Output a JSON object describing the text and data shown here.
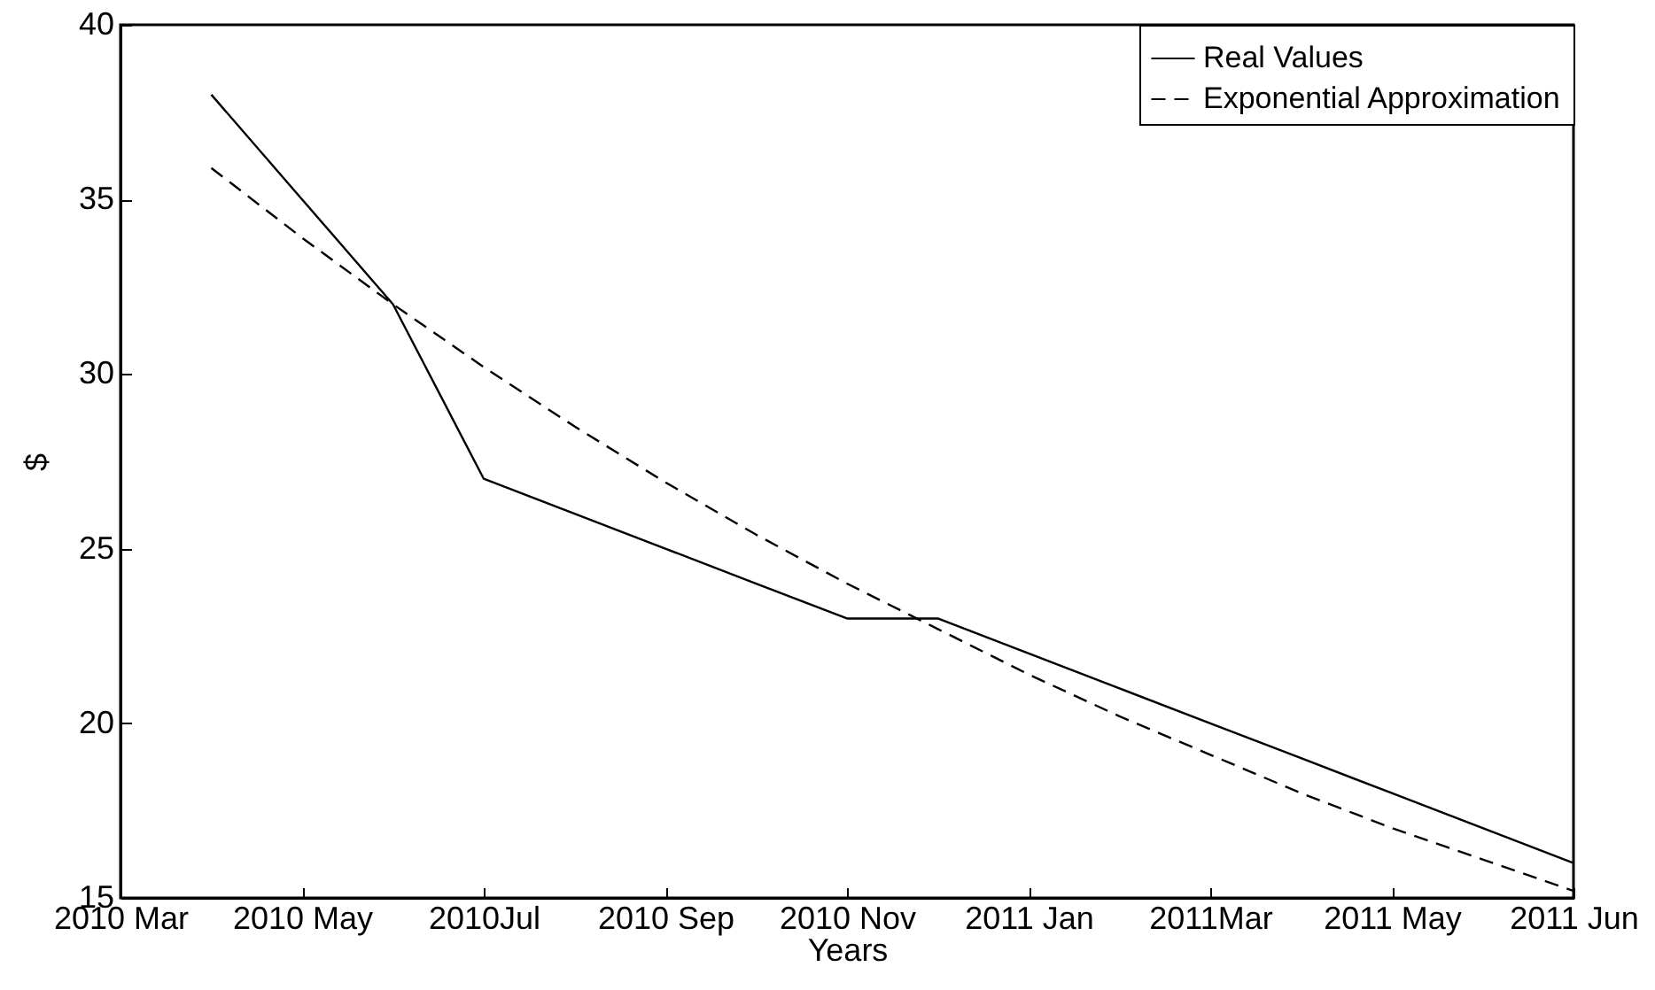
{
  "chart_data": {
    "type": "line",
    "xlabel": "Years",
    "ylabel": "$",
    "categories": [
      "2010 Mar",
      null,
      "2010 May",
      null,
      "2010Jul",
      null,
      "2010 Sep",
      null,
      "2010 Nov",
      null,
      "2011 Jan",
      null,
      "2011Mar",
      null,
      "2011 May",
      null,
      "2011 Jun"
    ],
    "ylim": [
      15,
      40
    ],
    "yticks": [
      15,
      20,
      25,
      30,
      35,
      40
    ],
    "grid": false,
    "legend": "top right",
    "marker": "none",
    "series": [
      {
        "name": "Real Values",
        "color": "#000000",
        "line_style": "solid",
        "values": [
          null,
          38,
          35,
          32,
          27,
          26,
          25,
          24,
          23,
          23,
          22,
          21,
          20,
          19,
          18,
          17,
          16
        ]
      },
      {
        "name": "Exponential Approximation",
        "color": "#000000",
        "line_style": "dashed",
        "values": [
          null,
          35.9,
          33.9,
          32,
          30.2,
          28.5,
          26.9,
          25.4,
          24,
          22.7,
          21.4,
          20.2,
          19.1,
          18,
          17,
          16.1,
          15.2
        ]
      }
    ]
  }
}
